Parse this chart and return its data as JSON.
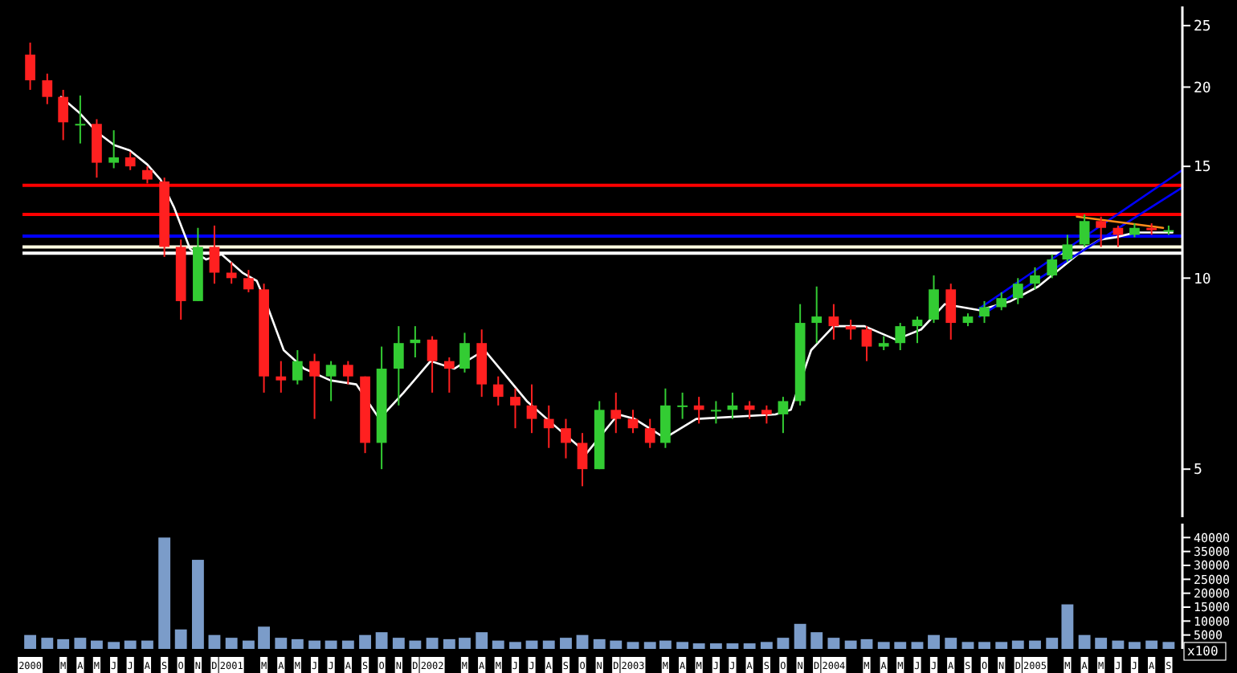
{
  "chart_data": [
    {
      "type": "candlestick",
      "log": true,
      "ylim": [
        4.2,
        26.8
      ],
      "yticks": [
        5,
        10,
        15,
        20,
        25
      ],
      "xlim": [
        "2000-01-01",
        "2005-10-10"
      ],
      "tick_labels": "y",
      "x": [
        "2000-01-15",
        "2000-02-15",
        "2000-03-15",
        "2000-04-15",
        "2000-05-15",
        "2000-06-15",
        "2000-07-15",
        "2000-08-15",
        "2000-09-15",
        "2000-10-15",
        "2000-11-15",
        "2000-12-15",
        "2001-01-15",
        "2001-02-15",
        "2001-03-15",
        "2001-04-15",
        "2001-05-15",
        "2001-06-15",
        "2001-07-15",
        "2001-08-15",
        "2001-09-15",
        "2001-10-15",
        "2001-11-15",
        "2001-12-15",
        "2002-01-15",
        "2002-02-15",
        "2002-03-15",
        "2002-04-15",
        "2002-05-15",
        "2002-06-15",
        "2002-07-15",
        "2002-08-15",
        "2002-09-15",
        "2002-10-15",
        "2002-11-15",
        "2002-12-15",
        "2003-01-15",
        "2003-02-15",
        "2003-03-15",
        "2003-04-15",
        "2003-05-15",
        "2003-06-15",
        "2003-07-15",
        "2003-08-15",
        "2003-09-15",
        "2003-10-15",
        "2003-11-15",
        "2003-12-15",
        "2004-01-15",
        "2004-02-15",
        "2004-03-15",
        "2004-04-15",
        "2004-05-15",
        "2004-06-15",
        "2004-07-15",
        "2004-08-15",
        "2004-09-15",
        "2004-10-15",
        "2004-11-15",
        "2004-12-15",
        "2005-01-15",
        "2005-02-15",
        "2005-03-15",
        "2005-04-15",
        "2005-05-15",
        "2005-06-15",
        "2005-07-15",
        "2005-08-15",
        "2005-09-15"
      ],
      "ohlc": [
        [
          22.5,
          23.5,
          19.8,
          20.5
        ],
        [
          20.5,
          21,
          18.8,
          19.3
        ],
        [
          19.3,
          19.8,
          16.5,
          17.6
        ],
        [
          17.5,
          19.4,
          16.3,
          17.5
        ],
        [
          17.5,
          17.8,
          14.4,
          15.2
        ],
        [
          15.2,
          17.1,
          14.9,
          15.5
        ],
        [
          15.5,
          15.8,
          14.8,
          15
        ],
        [
          14.8,
          15,
          14.1,
          14.3
        ],
        [
          14.2,
          14.4,
          10.8,
          11.2
        ],
        [
          11.2,
          11.5,
          8.6,
          9.2
        ],
        [
          9.2,
          12,
          9.2,
          11.2
        ],
        [
          11.2,
          12.1,
          9.8,
          10.2
        ],
        [
          10.2,
          10.6,
          9.8,
          10
        ],
        [
          10,
          10.3,
          9.5,
          9.6
        ],
        [
          9.6,
          9.8,
          6.6,
          7
        ],
        [
          7,
          7.4,
          6.6,
          6.9
        ],
        [
          6.9,
          7.7,
          6.8,
          7.4
        ],
        [
          7.4,
          7.6,
          6,
          7
        ],
        [
          7,
          7.4,
          6.4,
          7.3
        ],
        [
          7.3,
          7.4,
          6.8,
          7
        ],
        [
          7,
          7,
          5.3,
          5.5
        ],
        [
          5.5,
          7.8,
          5,
          7.2
        ],
        [
          7.2,
          8.4,
          6.3,
          7.9
        ],
        [
          7.9,
          8.4,
          7.5,
          8
        ],
        [
          8,
          8.1,
          6.6,
          7.4
        ],
        [
          7.4,
          7.5,
          6.6,
          7.2
        ],
        [
          7.2,
          8.2,
          7.1,
          7.9
        ],
        [
          7.9,
          8.3,
          6.5,
          6.8
        ],
        [
          6.8,
          7,
          6.3,
          6.5
        ],
        [
          6.5,
          6.7,
          5.8,
          6.3
        ],
        [
          6.3,
          6.8,
          5.7,
          6
        ],
        [
          6,
          6.3,
          5.4,
          5.8
        ],
        [
          5.8,
          6,
          5.2,
          5.5
        ],
        [
          5.5,
          5.7,
          4.7,
          5
        ],
        [
          5,
          6.4,
          5,
          6.2
        ],
        [
          6.2,
          6.6,
          5.7,
          6
        ],
        [
          6,
          6.2,
          5.7,
          5.8
        ],
        [
          5.8,
          6,
          5.4,
          5.5
        ],
        [
          5.5,
          6.7,
          5.4,
          6.3
        ],
        [
          6.3,
          6.6,
          6,
          6.3
        ],
        [
          6.3,
          6.5,
          5.9,
          6.2
        ],
        [
          6.2,
          6.4,
          5.9,
          6.2
        ],
        [
          6.2,
          6.6,
          6,
          6.3
        ],
        [
          6.3,
          6.4,
          6,
          6.2
        ],
        [
          6.2,
          6.3,
          5.9,
          6.1
        ],
        [
          6.1,
          6.5,
          5.7,
          6.4
        ],
        [
          6.4,
          9.1,
          6.3,
          8.5
        ],
        [
          8.5,
          9.7,
          7.9,
          8.7
        ],
        [
          8.7,
          9.1,
          8,
          8.4
        ],
        [
          8.4,
          8.6,
          8,
          8.3
        ],
        [
          8.3,
          8.4,
          7.4,
          7.8
        ],
        [
          7.8,
          8.1,
          7.7,
          7.9
        ],
        [
          7.9,
          8.5,
          7.7,
          8.4
        ],
        [
          8.4,
          8.7,
          7.9,
          8.6
        ],
        [
          8.6,
          10.1,
          8.5,
          9.6
        ],
        [
          9.6,
          9.8,
          8,
          8.5
        ],
        [
          8.5,
          8.8,
          8.4,
          8.7
        ],
        [
          8.7,
          9.2,
          8.5,
          9
        ],
        [
          9,
          9.5,
          8.9,
          9.3
        ],
        [
          9.3,
          10,
          9.1,
          9.8
        ],
        [
          9.8,
          10.4,
          9.6,
          10.1
        ],
        [
          10.1,
          10.9,
          10,
          10.7
        ],
        [
          10.7,
          11.7,
          10.6,
          11.3
        ],
        [
          11.3,
          12.6,
          11.2,
          12.3
        ],
        [
          12.3,
          12.5,
          11.2,
          12
        ],
        [
          12,
          12.1,
          11.2,
          11.7
        ],
        [
          11.7,
          12.2,
          11.6,
          12
        ],
        [
          12,
          12.2,
          11.7,
          11.9
        ],
        [
          11.9,
          12.1,
          11.7,
          11.9
        ]
      ],
      "series": [
        {
          "type": "line",
          "color": "#ffffff",
          "x": [
            "2000-03-11",
            "2000-04-14",
            "2000-05-15",
            "2000-06-16",
            "2000-07-14",
            "2000-08-15",
            "2000-09-08",
            "2000-10-03",
            "2000-11-01",
            "2000-11-30",
            "2000-12-28",
            "2001-02-04",
            "2001-03-02",
            "2001-03-22",
            "2001-04-20",
            "2001-05-27",
            "2001-07-14",
            "2001-08-30",
            "2001-10-11",
            "2001-11-24",
            "2002-01-12",
            "2002-02-24",
            "2002-04-20",
            "2002-05-24",
            "2002-07-06",
            "2002-08-21",
            "2002-10-23",
            "2002-12-19",
            "2003-01-18",
            "2003-03-14",
            "2003-05-10",
            "2003-10-01",
            "2003-10-29",
            "2003-12-05",
            "2004-01-15",
            "2004-03-11",
            "2004-05-07",
            "2004-06-22",
            "2004-08-04",
            "2004-10-06",
            "2004-12-02",
            "2005-01-21",
            "2005-03-05",
            "2005-04-14",
            "2005-05-13",
            "2005-06-11",
            "2005-07-17",
            "2005-09-22"
          ],
          "values": [
            19.3,
            18.2,
            17,
            16.2,
            15.9,
            15.1,
            14.3,
            12.9,
            11.1,
            10.7,
            10.9,
            10.2,
            9.9,
            9,
            7.7,
            7.2,
            6.9,
            6.8,
            6,
            6.6,
            7.4,
            7.2,
            7.7,
            7.1,
            6.4,
            5.9,
            5.3,
            6.1,
            6,
            5.6,
            6,
            6.1,
            6.2,
            7.7,
            8.4,
            8.4,
            8,
            8.3,
            9.1,
            8.9,
            9.2,
            9.7,
            10.4,
            11.1,
            11.5,
            11.6,
            11.8,
            11.8
          ]
        },
        {
          "type": "line",
          "color": "#0000ff",
          "x": [
            "2004-10-06",
            "2005-10-10"
          ],
          "values": [
            8.96,
            14.8
          ]
        },
        {
          "type": "line",
          "color": "#0000ff",
          "x": [
            "2004-10-06",
            "2005-10-10"
          ],
          "values": [
            8.7,
            13.9
          ]
        },
        {
          "type": "line",
          "color": "#ff8c1a",
          "x": [
            "2005-04-01",
            "2005-09-05"
          ],
          "values": [
            12.5,
            12
          ]
        }
      ],
      "ref_lines": [
        {
          "axis": "y",
          "value": 14,
          "color": "#ff0000"
        },
        {
          "axis": "y",
          "value": 12.6,
          "color": "#ff0000"
        },
        {
          "axis": "y",
          "value": 11.65,
          "color": "#0000ff"
        },
        {
          "axis": "y",
          "value": 11.2,
          "color": "#fffbe0"
        },
        {
          "axis": "y",
          "value": 10.95,
          "color": "#ffffff"
        }
      ]
    },
    {
      "type": "bar",
      "color": "#7b9cc9",
      "ylim": [
        0,
        45000
      ],
      "yticks": [
        5000,
        10000,
        15000,
        20000,
        25000,
        30000,
        35000,
        40000
      ],
      "xlim": [
        "2000-01-01",
        "2005-10-10"
      ],
      "annotations": [
        "x100"
      ],
      "x": [
        "2000-01-15",
        "2000-02-15",
        "2000-03-15",
        "2000-04-15",
        "2000-05-15",
        "2000-06-15",
        "2000-07-15",
        "2000-08-15",
        "2000-09-15",
        "2000-10-15",
        "2000-11-15",
        "2000-12-15",
        "2001-01-15",
        "2001-02-15",
        "2001-03-15",
        "2001-04-15",
        "2001-05-15",
        "2001-06-15",
        "2001-07-15",
        "2001-08-15",
        "2001-09-15",
        "2001-10-15",
        "2001-11-15",
        "2001-12-15",
        "2002-01-15",
        "2002-02-15",
        "2002-03-15",
        "2002-04-15",
        "2002-05-15",
        "2002-06-15",
        "2002-07-15",
        "2002-08-15",
        "2002-09-15",
        "2002-10-15",
        "2002-11-15",
        "2002-12-15",
        "2003-01-15",
        "2003-02-15",
        "2003-03-15",
        "2003-04-15",
        "2003-05-15",
        "2003-06-15",
        "2003-07-15",
        "2003-08-15",
        "2003-09-15",
        "2003-10-15",
        "2003-11-15",
        "2003-12-15",
        "2004-01-15",
        "2004-02-15",
        "2004-03-15",
        "2004-04-15",
        "2004-05-15",
        "2004-06-15",
        "2004-07-15",
        "2004-08-15",
        "2004-09-15",
        "2004-10-15",
        "2004-11-15",
        "2004-12-15",
        "2005-01-15",
        "2005-02-15",
        "2005-03-15",
        "2005-04-15",
        "2005-05-15",
        "2005-06-15",
        "2005-07-15",
        "2005-08-15",
        "2005-09-15"
      ],
      "values": [
        5000,
        4000,
        3500,
        4000,
        3000,
        2500,
        3000,
        3000,
        40000,
        7000,
        32000,
        5000,
        4000,
        3000,
        8000,
        4000,
        3500,
        3000,
        3000,
        3000,
        5000,
        6000,
        4000,
        3000,
        4000,
        3500,
        4000,
        6000,
        3000,
        2500,
        3000,
        3000,
        4000,
        5000,
        3500,
        3000,
        2500,
        2500,
        3000,
        2500,
        2000,
        2000,
        2000,
        2000,
        2500,
        4000,
        9000,
        6000,
        4000,
        3000,
        3500,
        2500,
        2500,
        2500,
        5000,
        4000,
        2500,
        2500,
        2500,
        3000,
        3000,
        4000,
        16000,
        5000,
        4000,
        3000,
        2500,
        3000,
        2500
      ],
      "xticks": [
        {
          "value": "2000-01-15",
          "label": "2000"
        },
        {
          "value": "2000-03-15",
          "label": "M"
        },
        {
          "value": "2000-04-15",
          "label": "A"
        },
        {
          "value": "2000-05-15",
          "label": "M"
        },
        {
          "value": "2000-06-15",
          "label": "J"
        },
        {
          "value": "2000-07-15",
          "label": "J"
        },
        {
          "value": "2000-08-15",
          "label": "A"
        },
        {
          "value": "2000-09-15",
          "label": "S"
        },
        {
          "value": "2000-10-15",
          "label": "O"
        },
        {
          "value": "2000-11-15",
          "label": "N"
        },
        {
          "value": "2000-12-15",
          "label": "D"
        },
        {
          "value": "2001-01-15",
          "label": "2001"
        },
        {
          "value": "2001-03-15",
          "label": "M"
        },
        {
          "value": "2001-04-15",
          "label": "A"
        },
        {
          "value": "2001-05-15",
          "label": "M"
        },
        {
          "value": "2001-06-15",
          "label": "J"
        },
        {
          "value": "2001-07-15",
          "label": "J"
        },
        {
          "value": "2001-08-15",
          "label": "A"
        },
        {
          "value": "2001-09-15",
          "label": "S"
        },
        {
          "value": "2001-10-15",
          "label": "O"
        },
        {
          "value": "2001-11-15",
          "label": "N"
        },
        {
          "value": "2001-12-15",
          "label": "D"
        },
        {
          "value": "2002-01-15",
          "label": "2002"
        },
        {
          "value": "2002-03-15",
          "label": "M"
        },
        {
          "value": "2002-04-15",
          "label": "A"
        },
        {
          "value": "2002-05-15",
          "label": "M"
        },
        {
          "value": "2002-06-15",
          "label": "J"
        },
        {
          "value": "2002-07-15",
          "label": "J"
        },
        {
          "value": "2002-08-15",
          "label": "A"
        },
        {
          "value": "2002-09-15",
          "label": "S"
        },
        {
          "value": "2002-10-15",
          "label": "O"
        },
        {
          "value": "2002-11-15",
          "label": "N"
        },
        {
          "value": "2002-12-15",
          "label": "D"
        },
        {
          "value": "2003-01-15",
          "label": "2003"
        },
        {
          "value": "2003-03-15",
          "label": "M"
        },
        {
          "value": "2003-04-15",
          "label": "A"
        },
        {
          "value": "2003-05-15",
          "label": "M"
        },
        {
          "value": "2003-06-15",
          "label": "J"
        },
        {
          "value": "2003-07-15",
          "label": "J"
        },
        {
          "value": "2003-08-15",
          "label": "A"
        },
        {
          "value": "2003-09-15",
          "label": "S"
        },
        {
          "value": "2003-10-15",
          "label": "O"
        },
        {
          "value": "2003-11-15",
          "label": "N"
        },
        {
          "value": "2003-12-15",
          "label": "D"
        },
        {
          "value": "2004-01-15",
          "label": "2004"
        },
        {
          "value": "2004-03-15",
          "label": "M"
        },
        {
          "value": "2004-04-15",
          "label": "A"
        },
        {
          "value": "2004-05-15",
          "label": "M"
        },
        {
          "value": "2004-06-15",
          "label": "J"
        },
        {
          "value": "2004-07-15",
          "label": "J"
        },
        {
          "value": "2004-08-15",
          "label": "A"
        },
        {
          "value": "2004-09-15",
          "label": "S"
        },
        {
          "value": "2004-10-15",
          "label": "O"
        },
        {
          "value": "2004-11-15",
          "label": "N"
        },
        {
          "value": "2004-12-15",
          "label": "D"
        },
        {
          "value": "2005-01-15",
          "label": "2005"
        },
        {
          "value": "2005-03-15",
          "label": "M"
        },
        {
          "value": "2005-04-15",
          "label": "A"
        },
        {
          "value": "2005-05-15",
          "label": "M"
        },
        {
          "value": "2005-06-15",
          "label": "J"
        },
        {
          "value": "2005-07-15",
          "label": "J"
        },
        {
          "value": "2005-08-15",
          "label": "A"
        },
        {
          "value": "2005-09-15",
          "label": "S"
        }
      ]
    }
  ]
}
